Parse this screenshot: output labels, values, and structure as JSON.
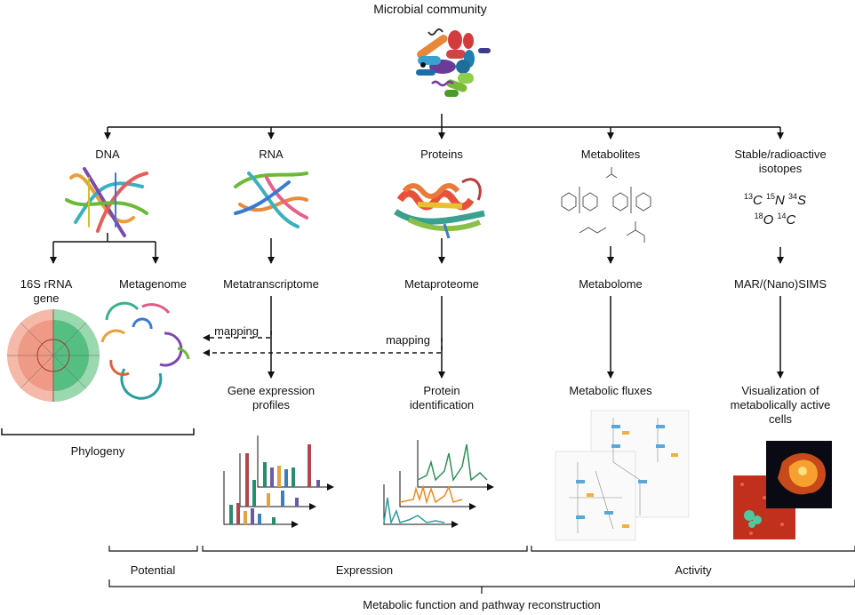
{
  "title": "Microbial community",
  "columns": {
    "dna": "DNA",
    "rna": "RNA",
    "proteins": "Proteins",
    "metabolites": "Metabolites",
    "isotopes": "Stable/radioactive isotopes"
  },
  "isotopes": {
    "line1": [
      {
        "mass": "13",
        "el": "C"
      },
      {
        "mass": "15",
        "el": "N"
      },
      {
        "mass": "34",
        "el": "S"
      }
    ],
    "line2": [
      {
        "mass": "18",
        "el": "O"
      },
      {
        "mass": "14",
        "el": "C"
      }
    ]
  },
  "level2": {
    "rrna": "16S rRNA gene",
    "metagenome": "Metagenome",
    "metatranscriptome": "Metatranscriptome",
    "metaproteome": "Metaproteome",
    "metabolome": "Metabolome",
    "sims": "MAR/(Nano)SIMS"
  },
  "mapping": [
    "mapping",
    "mapping"
  ],
  "level3": {
    "gene_expression": "Gene expression profiles",
    "protein_id": "Protein identification",
    "fluxes": "Metabolic fluxes",
    "visualization": "Visualization of metabolically active cells"
  },
  "phylogeny": "Phylogeny",
  "brackets": {
    "potential": "Potential",
    "expression": "Expression",
    "activity": "Activity"
  },
  "footer": "Metabolic function and pathway reconstruction",
  "colors": {
    "line": "#111111",
    "tree_red": "#e8735f",
    "tree_green": "#3fae6e",
    "bar_colors": [
      "#2a8c6e",
      "#b5454c",
      "#e6a23c",
      "#6a5aa8",
      "#3b7fbf"
    ],
    "spectrum_green": "#2f8f57",
    "spectrum_orange": "#f08a1f",
    "spectrum_teal": "#2a9e9e"
  }
}
